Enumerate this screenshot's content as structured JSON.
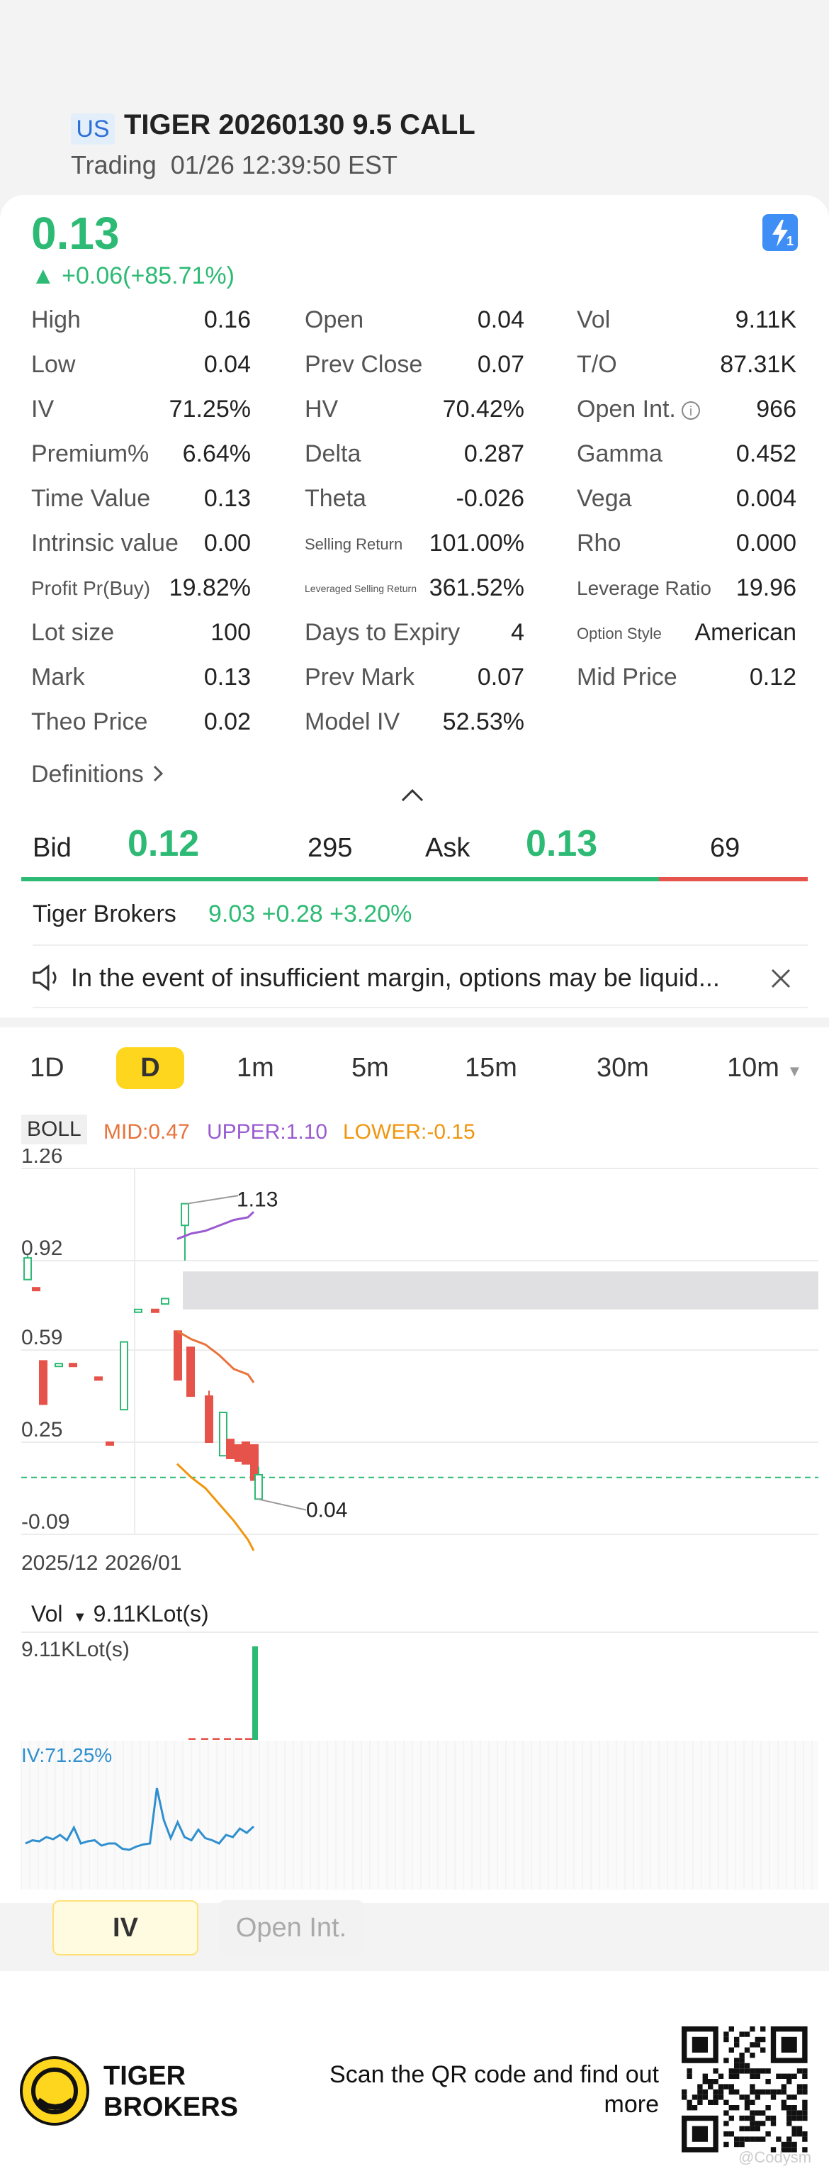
{
  "header": {
    "market": "US",
    "title": "TIGER 20260130 9.5 CALL",
    "status": "Trading",
    "timestamp": "01/26 12:39:50 EST"
  },
  "quote": {
    "price": "0.13",
    "change": "+0.06(+85.71%)",
    "flash_badge": "1",
    "color_up": "#2dba74",
    "color_down": "#e5534b"
  },
  "stats": [
    [
      {
        "label": "High",
        "value": "0.16"
      },
      {
        "label": "Open",
        "value": "0.04"
      },
      {
        "label": "Vol",
        "value": "9.11K"
      }
    ],
    [
      {
        "label": "Low",
        "value": "0.04"
      },
      {
        "label": "Prev Close",
        "value": "0.07"
      },
      {
        "label": "T/O",
        "value": "87.31K"
      }
    ],
    [
      {
        "label": "IV",
        "value": "71.25%"
      },
      {
        "label": "HV",
        "value": "70.42%"
      },
      {
        "label": "Open Int.",
        "value": "966"
      }
    ],
    [
      {
        "label": "Premium%",
        "value": "6.64%"
      },
      {
        "label": "Delta",
        "value": "0.287"
      },
      {
        "label": "Gamma",
        "value": "0.452"
      }
    ],
    [
      {
        "label": "Time Value",
        "value": "0.13"
      },
      {
        "label": "Theta",
        "value": "-0.026"
      },
      {
        "label": "Vega",
        "value": "0.004"
      }
    ],
    [
      {
        "label": "Intrinsic value",
        "value": "0.00"
      },
      {
        "label": "Selling Return",
        "value": "101.00%"
      },
      {
        "label": "Rho",
        "value": "0.000"
      }
    ],
    [
      {
        "label": "Profit Pr(Buy)",
        "value": "19.82%"
      },
      {
        "label": "Leveraged Selling Return",
        "value": "361.52%"
      },
      {
        "label": "Leverage Ratio",
        "value": "19.96"
      }
    ],
    [
      {
        "label": "Lot size",
        "value": "100"
      },
      {
        "label": "Days to Expiry",
        "value": "4"
      },
      {
        "label": "Option Style",
        "value": "American"
      }
    ],
    [
      {
        "label": "Mark",
        "value": "0.13"
      },
      {
        "label": "Prev Mark",
        "value": "0.07"
      },
      {
        "label": "Mid Price",
        "value": "0.12"
      }
    ],
    [
      {
        "label": "Theo Price",
        "value": "0.02"
      },
      {
        "label": "Model IV",
        "value": "52.53%"
      }
    ]
  ],
  "definitions_label": "Definitions",
  "orderbook": {
    "bid_label": "Bid",
    "bid_price": "0.12",
    "bid_size": "295",
    "ask_label": "Ask",
    "ask_price": "0.13",
    "ask_size": "69"
  },
  "underlying": {
    "name": "Tiger Brokers",
    "quote": "9.03 +0.28 +3.20%"
  },
  "notice": "In the event of insufficient margin, options may be liquid...",
  "timeframes": [
    "1D",
    "D",
    "1m",
    "5m",
    "15m",
    "30m",
    "10m"
  ],
  "timeframe_selected": "D",
  "indicator": {
    "name": "BOLL",
    "mid": "MID:0.47",
    "upper": "UPPER:1.10",
    "lower": "LOWER:-0.15"
  },
  "chart_data": {
    "type": "candlestick",
    "y_ticks": [
      "1.26",
      "0.92",
      "0.59",
      "0.25",
      "-0.09"
    ],
    "x_ticks": [
      "2025/12",
      "2026/01"
    ],
    "ylim": [
      -0.09,
      1.26
    ],
    "high_label": "1.13",
    "low_label": "0.04",
    "last_price_line": 0.12,
    "candles": [
      {
        "o": 0.93,
        "h": 0.94,
        "l": 0.85,
        "c": 0.85,
        "up": true
      },
      {
        "o": 0.82,
        "h": 0.82,
        "l": 0.81,
        "c": 0.81,
        "up": false
      },
      {
        "o": 0.55,
        "h": 0.55,
        "l": 0.39,
        "c": 0.39,
        "up": false
      },
      {
        "o": 0.54,
        "h": 0.54,
        "l": 0.53,
        "c": 0.53,
        "up": true
      },
      {
        "o": 0.54,
        "h": 0.54,
        "l": 0.53,
        "c": 0.53,
        "up": false
      },
      {
        "o": 0.49,
        "h": 0.49,
        "l": 0.48,
        "c": 0.48,
        "up": false
      },
      {
        "o": 0.25,
        "h": 0.25,
        "l": 0.24,
        "c": 0.24,
        "up": false
      },
      {
        "o": 0.37,
        "h": 0.62,
        "l": 0.37,
        "c": 0.62,
        "up": true
      },
      {
        "o": 0.74,
        "h": 0.74,
        "l": 0.73,
        "c": 0.73,
        "up": true
      },
      {
        "o": 0.74,
        "h": 0.74,
        "l": 0.73,
        "c": 0.73,
        "up": false
      },
      {
        "o": 0.78,
        "h": 0.78,
        "l": 0.76,
        "c": 0.76,
        "up": true
      },
      {
        "o": 1.05,
        "h": 1.13,
        "l": 0.92,
        "c": 1.13,
        "up": true
      },
      {
        "o": 0.66,
        "h": 0.66,
        "l": 0.48,
        "c": 0.48,
        "up": false
      },
      {
        "o": 0.6,
        "h": 0.6,
        "l": 0.42,
        "c": 0.42,
        "up": false
      },
      {
        "o": 0.42,
        "h": 0.44,
        "l": 0.25,
        "c": 0.25,
        "up": false
      },
      {
        "o": 0.2,
        "h": 0.36,
        "l": 0.2,
        "c": 0.36,
        "up": true
      },
      {
        "o": 0.26,
        "h": 0.26,
        "l": 0.19,
        "c": 0.19,
        "up": false
      },
      {
        "o": 0.24,
        "h": 0.24,
        "l": 0.18,
        "c": 0.18,
        "up": false
      },
      {
        "o": 0.25,
        "h": 0.25,
        "l": 0.17,
        "c": 0.17,
        "up": false
      },
      {
        "o": 0.24,
        "h": 0.24,
        "l": 0.11,
        "c": 0.11,
        "up": false
      },
      {
        "o": 0.04,
        "h": 0.16,
        "l": 0.04,
        "c": 0.13,
        "up": true
      }
    ],
    "boll_upper": [
      1.0,
      1.02,
      1.03,
      1.05,
      1.07,
      1.08,
      1.1
    ],
    "boll_mid": [
      0.66,
      0.63,
      0.61,
      0.57,
      0.52,
      0.5,
      0.47
    ],
    "boll_lower": [
      0.17,
      0.12,
      0.08,
      0.02,
      -0.04,
      -0.11,
      -0.15
    ]
  },
  "volume": {
    "label": "Vol",
    "value": "9.11KLot(s)",
    "axis_max": "9.11KLot(s)",
    "bars": [
      0.02,
      0.02,
      0.02,
      0.02,
      0.02,
      0.02,
      1.0
    ]
  },
  "iv_panel": {
    "label": "IV:71.25%",
    "series": [
      0.3,
      0.33,
      0.32,
      0.36,
      0.34,
      0.38,
      0.33,
      0.45,
      0.3,
      0.32,
      0.33,
      0.28,
      0.3,
      0.3,
      0.25,
      0.24,
      0.27,
      0.29,
      0.3,
      0.82,
      0.52,
      0.35,
      0.5,
      0.36,
      0.33,
      0.43,
      0.35,
      0.33,
      0.3,
      0.38,
      0.36,
      0.44,
      0.4,
      0.46
    ]
  },
  "tabs": {
    "iv": "IV",
    "open_int": "Open Int."
  },
  "footer": {
    "brand_line1": "TIGER",
    "brand_line2": "BROKERS",
    "scan_text": "Scan the QR code and find out more",
    "watermark": "@Codysm"
  }
}
